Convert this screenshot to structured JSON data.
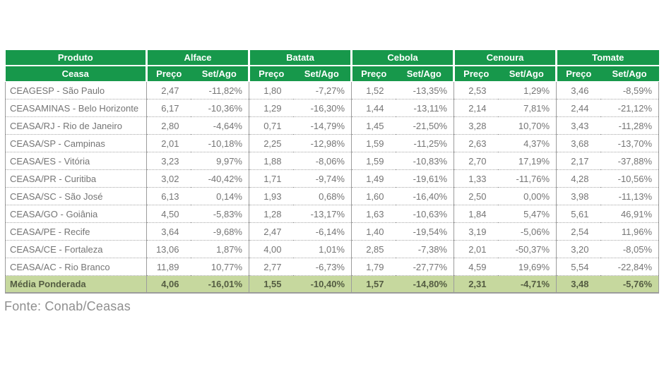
{
  "colors": {
    "header_green": "#17984b",
    "media_row_green": "#c6d89e",
    "body_text_gray": "#757575",
    "border_gray": "#9c9c9c"
  },
  "footer": {
    "source": "Fonte: Conab/Ceasas"
  },
  "table": {
    "header": {
      "produto": "Produto",
      "ceasa": "Ceasa",
      "preco": "Preço",
      "set_ago": "Set/Ago"
    },
    "products": [
      "Alface",
      "Batata",
      "Cebola",
      "Cenoura",
      "Tomate"
    ],
    "rows": [
      {
        "ceasa": "CEAGESP - São Paulo",
        "values": [
          [
            "2,47",
            "-11,82%"
          ],
          [
            "1,80",
            "-7,27%"
          ],
          [
            "1,52",
            "-13,35%"
          ],
          [
            "2,53",
            "1,29%"
          ],
          [
            "3,46",
            "-8,59%"
          ]
        ]
      },
      {
        "ceasa": "CEASAMINAS - Belo Horizonte",
        "values": [
          [
            "6,17",
            "-10,36%"
          ],
          [
            "1,29",
            "-16,30%"
          ],
          [
            "1,44",
            "-13,11%"
          ],
          [
            "2,14",
            "7,81%"
          ],
          [
            "2,44",
            "-21,12%"
          ]
        ]
      },
      {
        "ceasa": "CEASA/RJ - Rio de Janeiro",
        "values": [
          [
            "2,80",
            "-4,64%"
          ],
          [
            "0,71",
            "-14,79%"
          ],
          [
            "1,45",
            "-21,50%"
          ],
          [
            "3,28",
            "10,70%"
          ],
          [
            "3,43",
            "-11,28%"
          ]
        ]
      },
      {
        "ceasa": "CEASA/SP - Campinas",
        "values": [
          [
            "2,01",
            "-10,18%"
          ],
          [
            "2,25",
            "-12,98%"
          ],
          [
            "1,59",
            "-11,25%"
          ],
          [
            "2,63",
            "4,37%"
          ],
          [
            "3,68",
            "-13,70%"
          ]
        ]
      },
      {
        "ceasa": "CEASA/ES - Vitória",
        "values": [
          [
            "3,23",
            "9,97%"
          ],
          [
            "1,88",
            "-8,06%"
          ],
          [
            "1,59",
            "-10,83%"
          ],
          [
            "2,70",
            "17,19%"
          ],
          [
            "2,17",
            "-37,88%"
          ]
        ]
      },
      {
        "ceasa": "CEASA/PR - Curitiba",
        "values": [
          [
            "3,02",
            "-40,42%"
          ],
          [
            "1,71",
            "-9,74%"
          ],
          [
            "1,49",
            "-19,61%"
          ],
          [
            "1,33",
            "-11,76%"
          ],
          [
            "4,28",
            "-10,56%"
          ]
        ]
      },
      {
        "ceasa": "CEASA/SC - São José",
        "values": [
          [
            "6,13",
            "0,14%"
          ],
          [
            "1,93",
            "0,68%"
          ],
          [
            "1,60",
            "-16,40%"
          ],
          [
            "2,50",
            "0,00%"
          ],
          [
            "3,98",
            "-11,13%"
          ]
        ]
      },
      {
        "ceasa": "CEASA/GO - Goiânia",
        "values": [
          [
            "4,50",
            "-5,83%"
          ],
          [
            "1,28",
            "-13,17%"
          ],
          [
            "1,63",
            "-10,63%"
          ],
          [
            "1,84",
            "5,47%"
          ],
          [
            "5,61",
            "46,91%"
          ]
        ]
      },
      {
        "ceasa": "CEASA/PE - Recife",
        "values": [
          [
            "3,64",
            "-9,68%"
          ],
          [
            "2,47",
            "-6,14%"
          ],
          [
            "1,40",
            "-19,54%"
          ],
          [
            "3,19",
            "-5,06%"
          ],
          [
            "2,54",
            "11,96%"
          ]
        ]
      },
      {
        "ceasa": "CEASA/CE - Fortaleza",
        "values": [
          [
            "13,06",
            "1,87%"
          ],
          [
            "4,00",
            "1,01%"
          ],
          [
            "2,85",
            "-7,38%"
          ],
          [
            "2,01",
            "-50,37%"
          ],
          [
            "3,20",
            "-8,05%"
          ]
        ]
      },
      {
        "ceasa": "CEASA/AC - Rio Branco",
        "values": [
          [
            "11,89",
            "10,77%"
          ],
          [
            "2,77",
            "-6,73%"
          ],
          [
            "1,79",
            "-27,77%"
          ],
          [
            "4,59",
            "19,69%"
          ],
          [
            "5,54",
            "-22,84%"
          ]
        ]
      }
    ],
    "footer_row": {
      "label": "Média Ponderada",
      "values": [
        [
          "4,06",
          "-16,01%"
        ],
        [
          "1,55",
          "-10,40%"
        ],
        [
          "1,57",
          "-14,80%"
        ],
        [
          "2,31",
          "-4,71%"
        ],
        [
          "3,48",
          "-5,76%"
        ]
      ]
    }
  }
}
